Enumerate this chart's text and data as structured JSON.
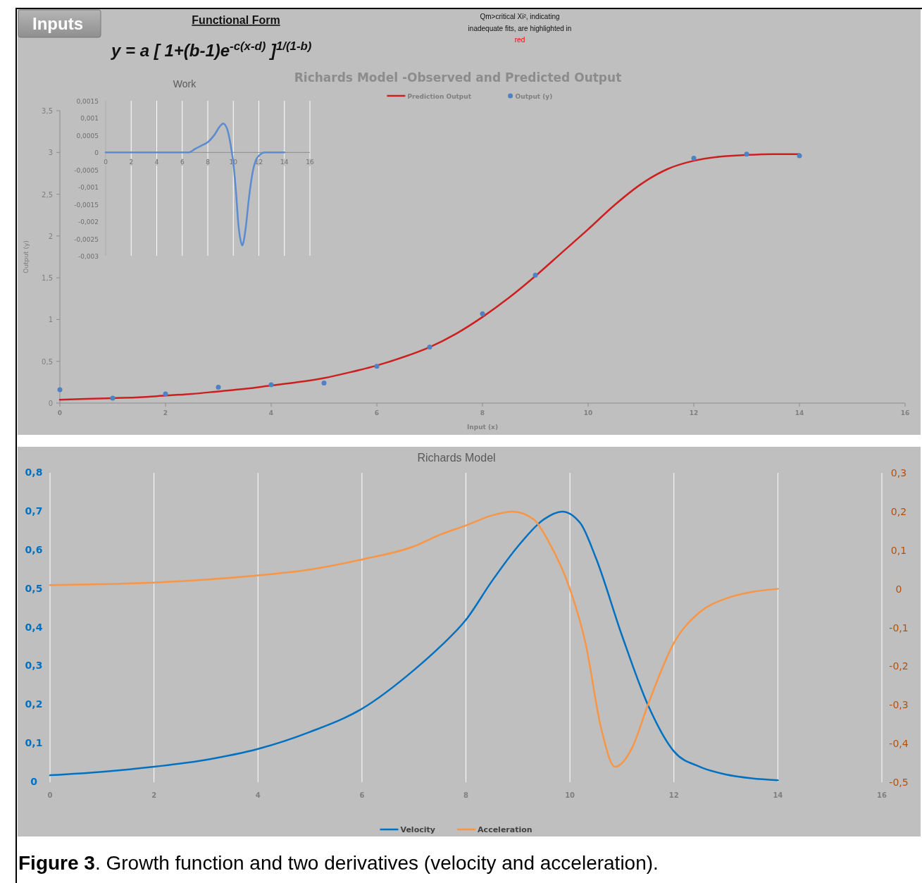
{
  "chart_data": [
    {
      "type": "line",
      "title": "Richards Model -Observed and Predicted Output",
      "xlabel": "Input (x)",
      "ylabel": "Output (y)",
      "xlim": [
        0,
        16
      ],
      "xticks": [
        0,
        2,
        4,
        6,
        8,
        10,
        12,
        14,
        16
      ],
      "ylim": [
        0,
        3.5
      ],
      "yticks": [
        0,
        {
          "value": 0.5,
          "label": "0,5"
        },
        1,
        {
          "value": 1.5,
          "label": "1,5"
        },
        2,
        {
          "value": 2.5,
          "label": "2,5"
        },
        3,
        {
          "value": 3.5,
          "label": "3,5"
        }
      ],
      "legend": "top",
      "annotations": [
        "Inputs",
        "Functional Form",
        "y = a [ 1+(b-1)e$^{-c(x-d)}$ ]$^{1/(1-b)}$",
        "Qm>critical Xi², indicating inadequate fits, are highlighted in red"
      ],
      "series": [
        {
          "name": "Prediction Output",
          "type": "line",
          "color": "#cc2020",
          "x": [
            0,
            0.5,
            1,
            1.5,
            2,
            2.5,
            3,
            3.5,
            4,
            4.5,
            5,
            5.5,
            6,
            6.5,
            7,
            7.5,
            8,
            8.5,
            9,
            9.5,
            10,
            10.5,
            11,
            11.5,
            12,
            12.5,
            13,
            13.5,
            14
          ],
          "values": [
            0.04,
            0.05,
            0.06,
            0.07,
            0.09,
            0.11,
            0.14,
            0.17,
            0.21,
            0.25,
            0.3,
            0.37,
            0.45,
            0.55,
            0.67,
            0.83,
            1.03,
            1.26,
            1.52,
            1.8,
            2.08,
            2.37,
            2.62,
            2.8,
            2.9,
            2.95,
            2.97,
            2.98,
            2.98
          ]
        },
        {
          "name": "Output (y)",
          "type": "scatter",
          "marker": "circle",
          "color": "#4f81c7",
          "x": [
            0,
            1,
            2,
            3,
            4,
            5,
            6,
            7,
            8,
            9,
            12,
            13,
            14
          ],
          "values": [
            0.16,
            0.06,
            0.11,
            0.19,
            0.22,
            0.24,
            0.44,
            0.67,
            1.07,
            1.53,
            2.93,
            2.98,
            2.96
          ]
        }
      ]
    },
    {
      "type": "line",
      "title": "Work",
      "xlim": [
        0,
        16
      ],
      "xticks": [
        0,
        2,
        4,
        6,
        8,
        10,
        12,
        14,
        16
      ],
      "ylim": [
        -0.003,
        0.0015
      ],
      "yticks": [
        {
          "value": -0.003,
          "label": "-0,003"
        },
        {
          "value": -0.0025,
          "label": "-0,0025"
        },
        {
          "value": -0.002,
          "label": "-0,002"
        },
        {
          "value": -0.0015,
          "label": "-0,0015"
        },
        {
          "value": -0.001,
          "label": "-0,001"
        },
        {
          "value": -0.0005,
          "label": "-0,0005"
        },
        0,
        {
          "value": 0.0005,
          "label": "0,0005"
        },
        {
          "value": 0.001,
          "label": "0,001"
        },
        {
          "value": 0.0015,
          "label": "0,0015"
        }
      ],
      "grid": "x",
      "series": [
        {
          "color": "#5b8bd0",
          "x": [
            0,
            2,
            4,
            5,
            6,
            6.5,
            7,
            7.5,
            8,
            8.5,
            9,
            9.2,
            9.5,
            9.8,
            10,
            10.2,
            10.4,
            10.6,
            10.7,
            10.8,
            11,
            11.2,
            11.5,
            11.8,
            12,
            12.5,
            13,
            14
          ],
          "values": [
            0,
            0,
            0,
            0,
            0,
            0,
            0.0001,
            0.0002,
            0.0003,
            0.0005,
            0.00078,
            0.00084,
            0.0007,
            0.0002,
            -0.0003,
            -0.0011,
            -0.0021,
            -0.0026,
            -0.0027,
            -0.0026,
            -0.0021,
            -0.0014,
            -0.0006,
            -0.0002,
            -0.0001,
            0,
            0,
            0
          ]
        }
      ]
    },
    {
      "type": "line",
      "title": "Richards Model",
      "xlim": [
        0,
        16
      ],
      "xticks": [
        0,
        2,
        4,
        6,
        8,
        10,
        12,
        14,
        16
      ],
      "ylim": [
        0,
        0.8
      ],
      "yticks": [
        0,
        {
          "value": 0.1,
          "label": "0,1"
        },
        {
          "value": 0.2,
          "label": "0,2"
        },
        {
          "value": 0.3,
          "label": "0,3"
        },
        {
          "value": 0.4,
          "label": "0,4"
        },
        {
          "value": 0.5,
          "label": "0,5"
        },
        {
          "value": 0.6,
          "label": "0,6"
        },
        {
          "value": 0.7,
          "label": "0,7"
        },
        {
          "value": 0.8,
          "label": "0,8"
        }
      ],
      "y2lim": [
        -0.5,
        0.3
      ],
      "y2ticks": [
        {
          "value": -0.5,
          "label": "-0,5"
        },
        {
          "value": -0.4,
          "label": "-0,4"
        },
        {
          "value": -0.3,
          "label": "-0,3"
        },
        {
          "value": -0.2,
          "label": "-0,2"
        },
        {
          "value": -0.1,
          "label": "-0,1"
        },
        0,
        {
          "value": 0.1,
          "label": "0,1"
        },
        {
          "value": 0.2,
          "label": "0,2"
        },
        {
          "value": 0.3,
          "label": "0,3"
        }
      ],
      "grid": "x",
      "legend": "bottom",
      "annotations": [
        "Figure 3. Growth function and two derivatives (velocity and acceleration)."
      ],
      "series": [
        {
          "name": "Velocity",
          "color": "#0070c0",
          "x": [
            0,
            1,
            2,
            3,
            4,
            5,
            6,
            7,
            7.5,
            8,
            8.5,
            9,
            9.5,
            9.85,
            10.2,
            10.5,
            11,
            11.5,
            12,
            12.5,
            13,
            13.5,
            14
          ],
          "values": [
            0.018,
            0.027,
            0.04,
            0.058,
            0.086,
            0.13,
            0.19,
            0.29,
            0.35,
            0.42,
            0.52,
            0.61,
            0.68,
            0.7,
            0.67,
            0.58,
            0.38,
            0.2,
            0.08,
            0.04,
            0.02,
            0.01,
            0.005
          ]
        },
        {
          "name": "Acceleration",
          "color": "#f79646",
          "axis": "y2",
          "x": [
            0,
            1,
            2,
            3,
            4,
            5,
            6,
            7,
            7.5,
            8,
            8.5,
            8.9,
            9.3,
            9.6,
            10,
            10.3,
            10.6,
            10.87,
            11.2,
            11.5,
            12,
            12.5,
            13,
            13.5,
            14
          ],
          "values": [
            0.01,
            0.012,
            0.016,
            0.024,
            0.035,
            0.05,
            0.076,
            0.11,
            0.14,
            0.164,
            0.19,
            0.2,
            0.18,
            0.12,
            0,
            -0.14,
            -0.36,
            -0.46,
            -0.41,
            -0.3,
            -0.14,
            -0.06,
            -0.025,
            -0.008,
            0
          ]
        }
      ]
    }
  ]
}
